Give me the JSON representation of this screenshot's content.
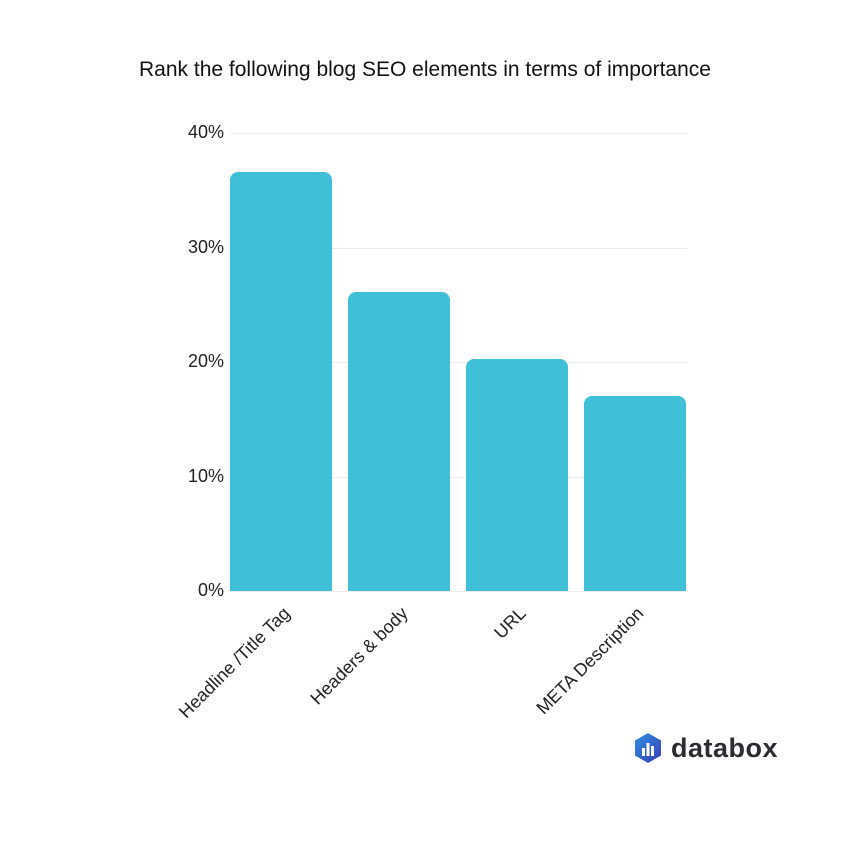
{
  "chart_data": {
    "type": "bar",
    "title": "Rank the following blog SEO elements in terms of importance",
    "categories": [
      "Headline /Title Tag",
      "Headers & body",
      "URL",
      "META Description"
    ],
    "values": [
      36.6,
      26.1,
      20.3,
      17.0
    ],
    "xlabel": "",
    "ylabel": "",
    "ylim": [
      0,
      40
    ],
    "yticks": [
      "0%",
      "10%",
      "20%",
      "30%",
      "40%"
    ],
    "grid": true,
    "bar_color": "#3fc0d6"
  },
  "brand": {
    "name": "databox"
  }
}
